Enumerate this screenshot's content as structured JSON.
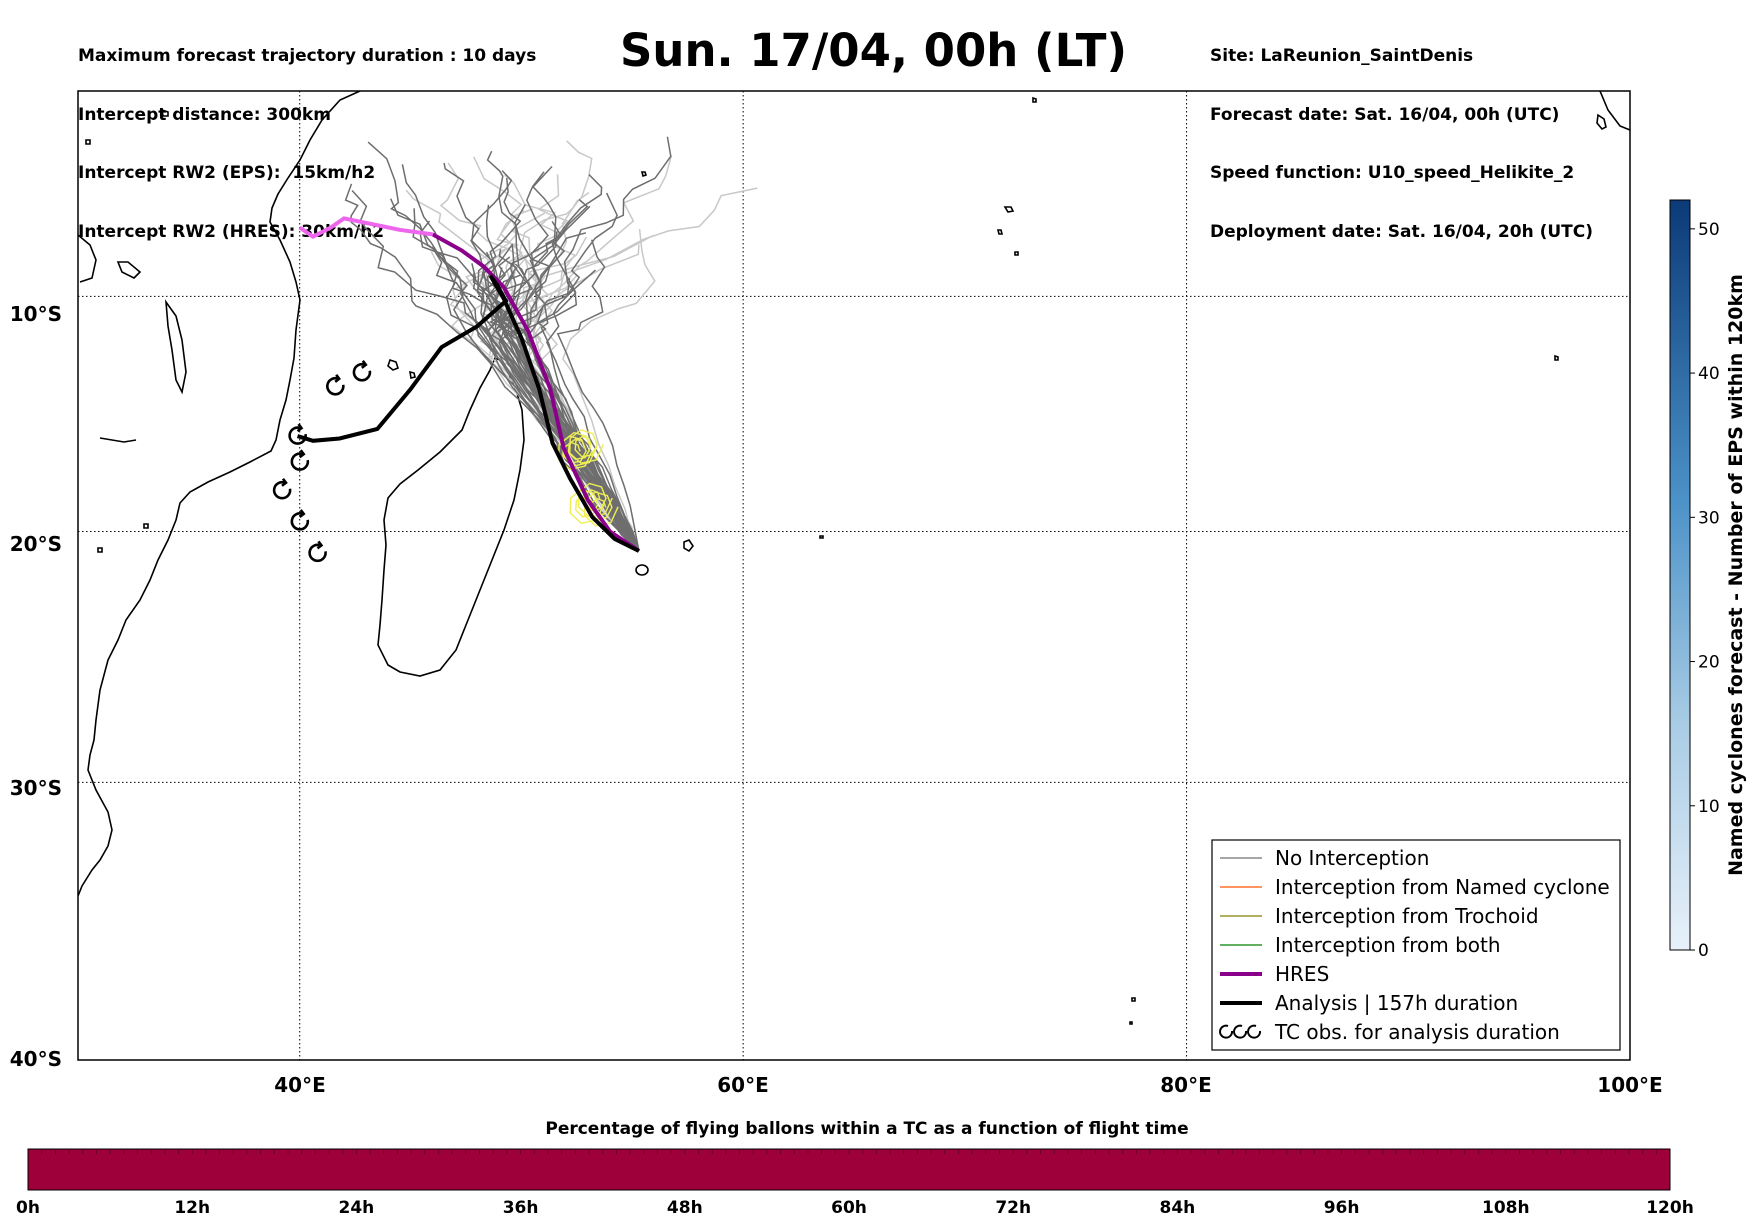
{
  "header": {
    "left_lines": [
      "Maximum forecast trajectory duration : 10 days",
      "Intercept distance: 300km",
      "Intercept RW2 (EPS):  15km/h2",
      "Intercept RW2 (HRES): 30km/h2"
    ],
    "title": "Sun. 17/04, 00h (LT)",
    "right_lines": [
      "Site: LaReunion_SaintDenis",
      "Forecast date: Sat. 16/04, 00h (UTC)",
      "Speed function: U10_speed_Helikite_2",
      "Deployment date: Sat. 16/04, 20h (UTC)"
    ]
  },
  "map": {
    "lat_labels": [
      "10°S",
      "20°S",
      "30°S",
      "40°S"
    ],
    "lon_labels": [
      "40°E",
      "60°E",
      "80°E",
      "100°E"
    ],
    "lon_range": [
      30,
      100
    ],
    "lat_range": [
      -40,
      -1
    ],
    "gridlines": "dotted",
    "colors": {
      "no_interception": "#707070",
      "named_cyclone": "#ff5500",
      "trochoid": "#808000",
      "both": "#008000",
      "hres": "#8b008b",
      "hres_early": "#ee66ee",
      "analysis": "#000000",
      "trochoid_yellow": "#eeee44"
    },
    "hres_track": [
      [
        40.0,
        -7.0
      ],
      [
        40.6,
        -7.4
      ],
      [
        41.4,
        -7.0
      ],
      [
        42.0,
        -6.6
      ],
      [
        43.0,
        -6.8
      ],
      [
        44.5,
        -7.1
      ],
      [
        46.0,
        -7.3
      ],
      [
        47.3,
        -8.0
      ],
      [
        48.3,
        -8.7
      ],
      [
        49.2,
        -9.6
      ],
      [
        50.3,
        -11.5
      ],
      [
        51.3,
        -14.0
      ],
      [
        51.9,
        -16.5
      ],
      [
        53.0,
        -18.7
      ],
      [
        54.0,
        -20.0
      ],
      [
        55.3,
        -20.8
      ]
    ],
    "analysis_track": [
      [
        55.3,
        -20.8
      ],
      [
        54.2,
        -20.3
      ],
      [
        53.2,
        -19.4
      ],
      [
        52.2,
        -17.8
      ],
      [
        51.4,
        -16.3
      ],
      [
        50.8,
        -14.0
      ],
      [
        50.0,
        -11.8
      ],
      [
        49.2,
        -10.1
      ],
      [
        48.6,
        -9.1
      ],
      [
        48.9,
        -9.5
      ],
      [
        49.3,
        -10.2
      ],
      [
        48.0,
        -11.3
      ],
      [
        46.4,
        -12.2
      ],
      [
        45.0,
        -14.0
      ],
      [
        43.5,
        -15.7
      ],
      [
        41.8,
        -16.1
      ],
      [
        40.6,
        -16.2
      ],
      [
        39.9,
        -16.0
      ]
    ],
    "tc_obs": [
      [
        39.9,
        -16.0
      ],
      [
        40.0,
        -17.1
      ],
      [
        39.2,
        -18.3
      ],
      [
        40.0,
        -19.6
      ],
      [
        40.8,
        -20.9
      ],
      [
        41.6,
        -13.9
      ],
      [
        42.8,
        -13.3
      ]
    ]
  },
  "legend": {
    "items": [
      {
        "label": "No Interception",
        "color": "#707070",
        "style": "thin"
      },
      {
        "label": "Interception from Named cyclone",
        "color": "#ff5500",
        "style": "thin"
      },
      {
        "label": "Interception from Trochoid",
        "color": "#808000",
        "style": "thin"
      },
      {
        "label": "Interception from both",
        "color": "#008000",
        "style": "thin"
      },
      {
        "label": "HRES",
        "color": "#8b008b",
        "style": "thick"
      },
      {
        "label": "Analysis | 157h duration",
        "color": "#000000",
        "style": "thick"
      },
      {
        "label": "TC obs. for analysis duration",
        "color": "#000000",
        "style": "tc"
      }
    ]
  },
  "right_colorbar": {
    "label": "Named cyclones forecast - Number of EPS within 120km",
    "ticks": [
      "0",
      "10",
      "20",
      "30",
      "40",
      "50"
    ],
    "range": [
      0,
      52
    ],
    "color_low": "#e8f1fa",
    "color_high": "#0b3a78"
  },
  "bottom_colorbar": {
    "title": "Percentage of flying ballons within a TC as a function of flight time",
    "ticks": [
      "0h",
      "12h",
      "24h",
      "36h",
      "48h",
      "60h",
      "72h",
      "84h",
      "96h",
      "108h",
      "120h"
    ],
    "fill_color": "#9e003a"
  }
}
